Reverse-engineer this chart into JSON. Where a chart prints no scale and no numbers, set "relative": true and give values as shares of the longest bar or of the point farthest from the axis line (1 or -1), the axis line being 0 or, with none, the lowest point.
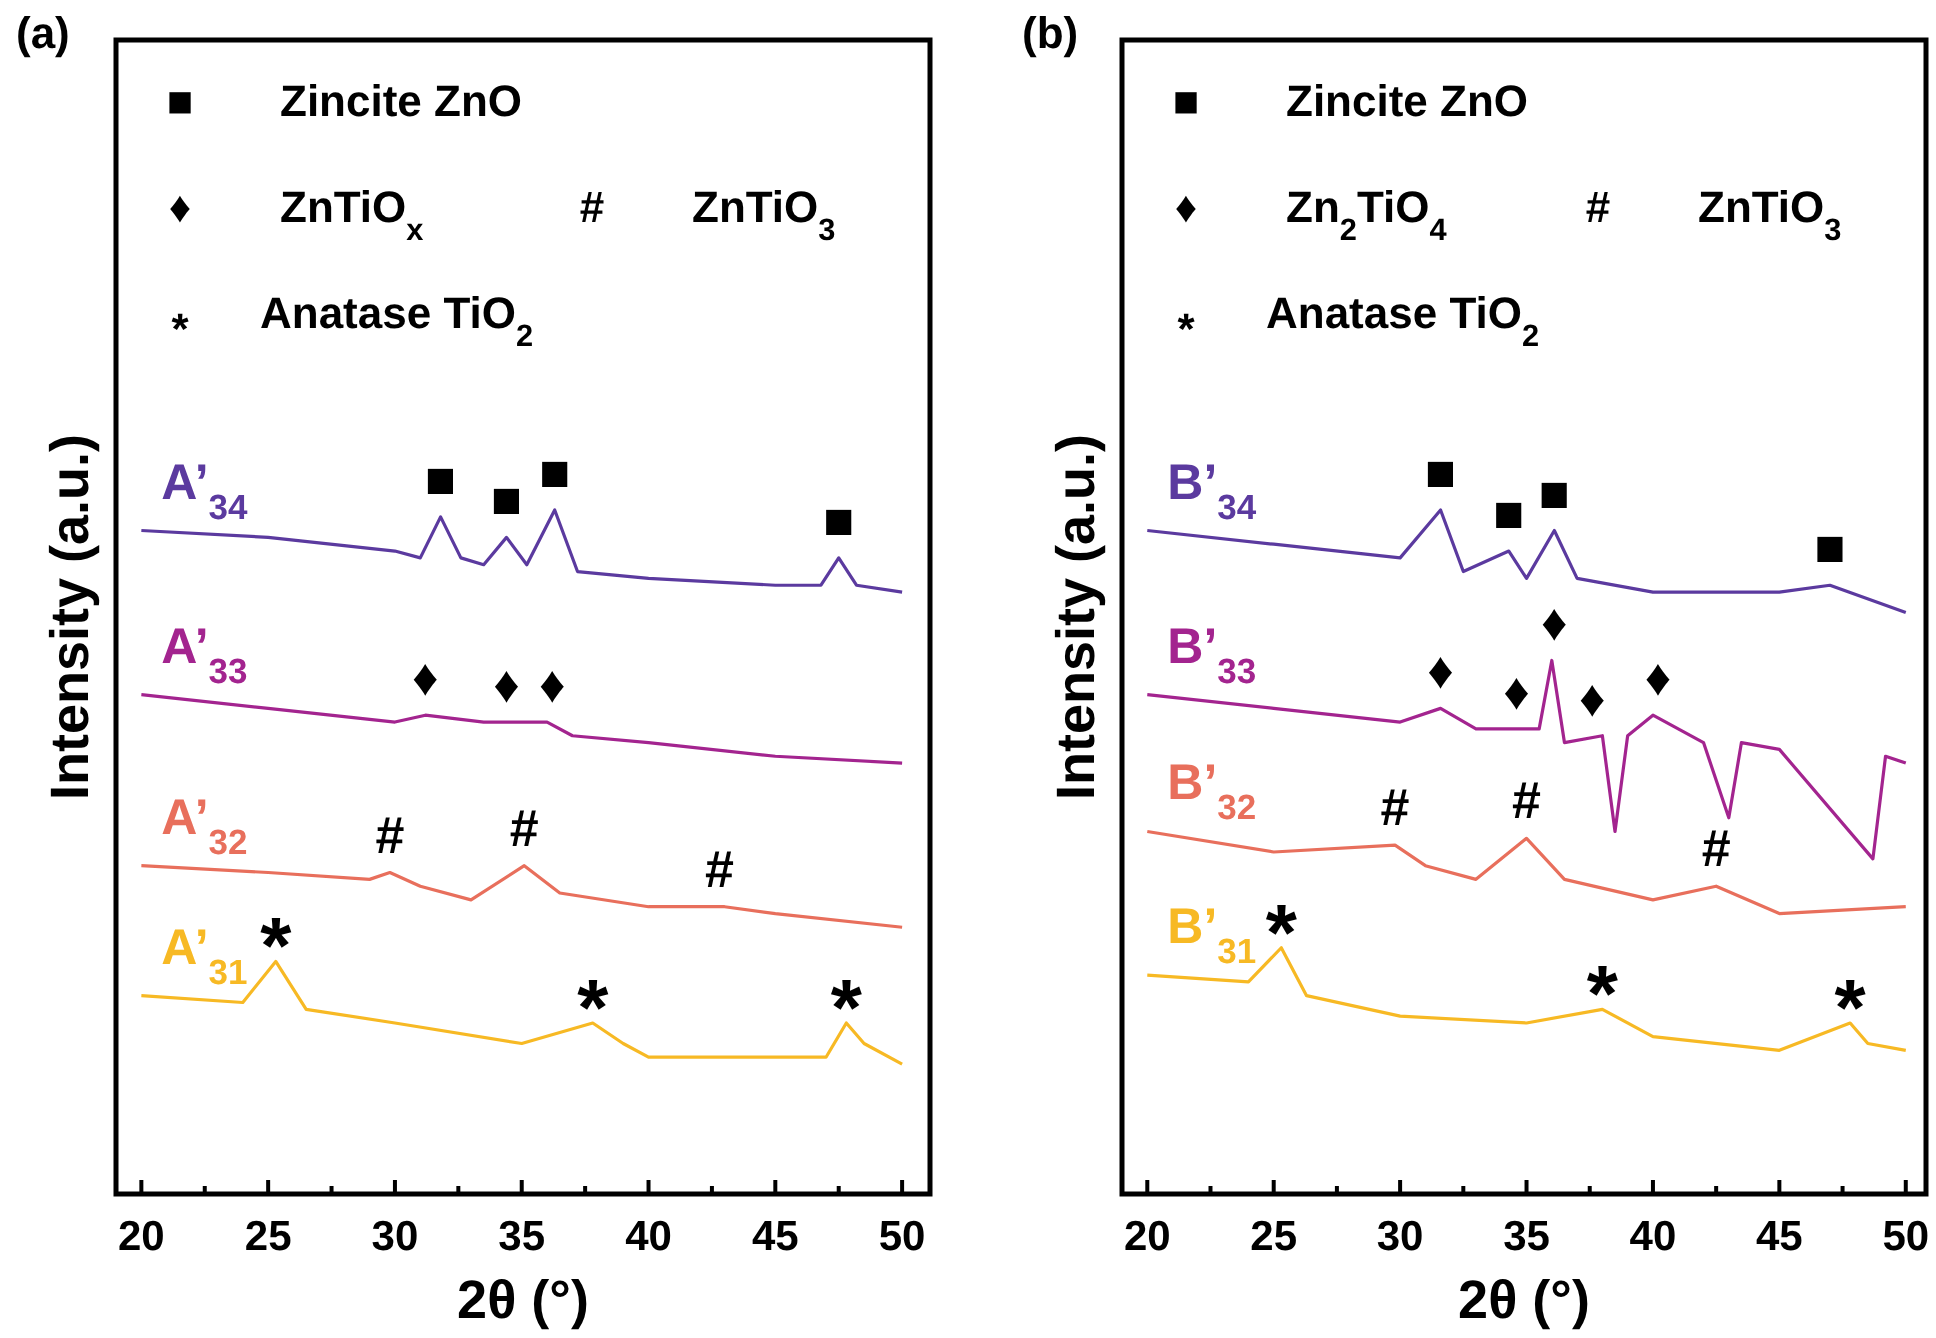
{
  "chart_data": [
    {
      "type": "line",
      "title": "(a)",
      "xlabel": "2θ (°)",
      "ylabel": "Intensity (a.u.)",
      "relative": true,
      "legend": false,
      "marker": "none",
      "line_style": "solid",
      "xlim": [
        19,
        51.1
      ],
      "xticks": [
        20,
        {
          "value": 22.5,
          "label": null
        },
        25,
        {
          "value": 27.5,
          "label": null
        },
        30,
        {
          "value": 32.5,
          "label": null
        },
        35,
        {
          "value": 37.5,
          "label": null
        },
        40,
        {
          "value": 42.5,
          "label": null
        },
        45,
        {
          "value": 47.5,
          "label": null
        },
        50
      ],
      "series": [
        {
          "name": "A’$_{34}$",
          "color": "#5b3a9f",
          "x": [
            20,
            25,
            30,
            31,
            31.8,
            32.6,
            33.5,
            34.4,
            35.2,
            36.3,
            37.2,
            40,
            45,
            46.8,
            47.5,
            48.2,
            50
          ],
          "values": [
            0.97,
            0.96,
            0.94,
            0.93,
            0.99,
            0.93,
            0.92,
            0.96,
            0.92,
            1.0,
            0.91,
            0.9,
            0.89,
            0.89,
            0.93,
            0.89,
            0.88
          ]
        },
        {
          "name": "A’$_{33}$",
          "color": "#a3248f",
          "x": [
            20,
            25,
            30,
            31.2,
            33.5,
            34.5,
            36,
            37,
            40,
            45,
            50
          ],
          "values": [
            0.73,
            0.71,
            0.69,
            0.7,
            0.69,
            0.69,
            0.69,
            0.67,
            0.66,
            0.64,
            0.63
          ]
        },
        {
          "name": "A’$_{32}$",
          "color": "#e86f5c",
          "x": [
            20,
            25,
            29,
            29.8,
            31,
            33,
            35.1,
            36.5,
            40,
            43,
            45,
            50
          ],
          "values": [
            0.48,
            0.47,
            0.46,
            0.47,
            0.45,
            0.43,
            0.48,
            0.44,
            0.42,
            0.42,
            0.41,
            0.39
          ]
        },
        {
          "name": "A’$_{31}$",
          "color": "#f7b924",
          "x": [
            20,
            24,
            25.3,
            26.5,
            30,
            35,
            37.8,
            39,
            40,
            45,
            47,
            47.8,
            48.5,
            50
          ],
          "values": [
            0.29,
            0.28,
            0.34,
            0.27,
            0.25,
            0.22,
            0.25,
            0.22,
            0.2,
            0.2,
            0.2,
            0.25,
            0.22,
            0.19
          ]
        }
      ],
      "annotations": [
        "■",
        "Zincite ZnO",
        "♦",
        "ZnTiO$_{x}$",
        "#",
        "ZnTiO$_{3}$",
        "*",
        "Anatase TiO$_{2}$",
        {
          "text": "■",
          "x": 31.8,
          "y": 0.99
        },
        {
          "text": "■",
          "x": 34.4,
          "y": 0.96
        },
        {
          "text": "■",
          "x": 36.3,
          "y": 1.0
        },
        {
          "text": "■",
          "x": 47.5,
          "y": 0.93
        },
        {
          "text": "♦",
          "x": 31.2,
          "y": 0.7
        },
        {
          "text": "♦",
          "x": 34.4,
          "y": 0.69
        },
        {
          "text": "♦",
          "x": 36.2,
          "y": 0.69
        },
        {
          "text": "#",
          "x": 29.8,
          "y": 0.47
        },
        {
          "text": "#",
          "x": 35.1,
          "y": 0.48
        },
        {
          "text": "#",
          "x": 42.8,
          "y": 0.42
        },
        {
          "text": "*",
          "x": 25.3,
          "y": 0.34
        },
        {
          "text": "*",
          "x": 37.8,
          "y": 0.25
        },
        {
          "text": "*",
          "x": 47.8,
          "y": 0.25
        }
      ]
    },
    {
      "type": "line",
      "title": "(b)",
      "xlabel": "2θ (°)",
      "ylabel": "Intensity (a.u.)",
      "relative": true,
      "legend": false,
      "marker": "none",
      "line_style": "solid",
      "xlim": [
        19,
        50.8
      ],
      "xticks": [
        20,
        {
          "value": 22.5,
          "label": null
        },
        25,
        {
          "value": 27.5,
          "label": null
        },
        30,
        {
          "value": 32.5,
          "label": null
        },
        35,
        {
          "value": 37.5,
          "label": null
        },
        40,
        {
          "value": 42.5,
          "label": null
        },
        45,
        {
          "value": 47.5,
          "label": null
        },
        50
      ],
      "series": [
        {
          "name": "B’$_{34}$",
          "color": "#5b3a9f",
          "x": [
            20,
            25,
            30,
            31.6,
            32.5,
            34.3,
            35,
            36.1,
            37,
            40,
            45,
            47,
            50
          ],
          "values": [
            0.97,
            0.95,
            0.93,
            1.0,
            0.91,
            0.94,
            0.9,
            0.97,
            0.9,
            0.88,
            0.88,
            0.89,
            0.85
          ]
        },
        {
          "name": "B’$_{33}$",
          "color": "#a3248f",
          "x": [
            20,
            25,
            30,
            31.6,
            33,
            35.5,
            36,
            36.5,
            38,
            38.5,
            39,
            40,
            42,
            43,
            43.5,
            45,
            48.7,
            49.2,
            50
          ],
          "values": [
            0.73,
            0.71,
            0.69,
            0.71,
            0.68,
            0.68,
            0.78,
            0.66,
            0.67,
            0.53,
            0.67,
            0.7,
            0.66,
            0.55,
            0.66,
            0.65,
            0.49,
            0.64,
            0.63
          ]
        },
        {
          "name": "B’$_{32}$",
          "color": "#e86f5c",
          "x": [
            20,
            25,
            29.8,
            31,
            33,
            35,
            36.5,
            40,
            42.5,
            45,
            50
          ],
          "values": [
            0.53,
            0.5,
            0.51,
            0.48,
            0.46,
            0.52,
            0.46,
            0.43,
            0.45,
            0.41,
            0.42
          ]
        },
        {
          "name": "B’$_{31}$",
          "color": "#f7b924",
          "x": [
            20,
            24,
            25.3,
            26.3,
            30,
            35,
            38,
            40,
            45,
            47.8,
            48.5,
            50
          ],
          "values": [
            0.32,
            0.31,
            0.36,
            0.29,
            0.26,
            0.25,
            0.27,
            0.23,
            0.21,
            0.25,
            0.22,
            0.21
          ]
        }
      ],
      "annotations": [
        "■",
        "Zincite ZnO",
        "♦",
        "Zn$_{2}$TiO$_{4}$",
        "#",
        "ZnTiO$_{3}$",
        "*",
        "Anatase TiO$_{2}$",
        {
          "text": "■",
          "x": 31.6,
          "y": 1.0
        },
        {
          "text": "■",
          "x": 34.3,
          "y": 0.94
        },
        {
          "text": "■",
          "x": 36.1,
          "y": 0.97
        },
        {
          "text": "■",
          "x": 47,
          "y": 0.89
        },
        {
          "text": "♦",
          "x": 31.6,
          "y": 0.71
        },
        {
          "text": "♦",
          "x": 34.6,
          "y": 0.68
        },
        {
          "text": "♦",
          "x": 36.1,
          "y": 0.78
        },
        {
          "text": "♦",
          "x": 37.6,
          "y": 0.67
        },
        {
          "text": "♦",
          "x": 40.2,
          "y": 0.7
        },
        {
          "text": "#",
          "x": 29.8,
          "y": 0.51
        },
        {
          "text": "#",
          "x": 35,
          "y": 0.52
        },
        {
          "text": "#",
          "x": 42.5,
          "y": 0.45
        },
        {
          "text": "*",
          "x": 25.3,
          "y": 0.36
        },
        {
          "text": "*",
          "x": 38,
          "y": 0.27
        },
        {
          "text": "*",
          "x": 47.8,
          "y": 0.25
        }
      ]
    }
  ]
}
